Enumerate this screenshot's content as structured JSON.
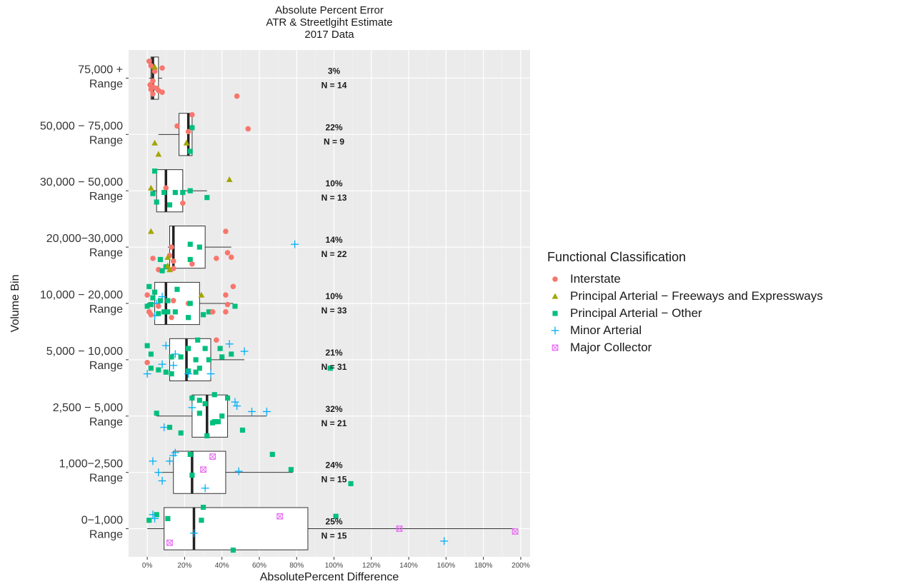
{
  "chart_data": {
    "type": "boxplot",
    "title": [
      "Absolute Percent Error",
      "ATR & Streetlgiht Estimate",
      "2017 Data"
    ],
    "xlabel": "AbsolutePercent Difference",
    "ylabel": "Volume Bin",
    "xlim": [
      -10,
      205
    ],
    "x_ticks": [
      0,
      20,
      40,
      60,
      80,
      100,
      120,
      140,
      160,
      180,
      200
    ],
    "x_tick_labels": [
      "0%",
      "20%",
      "40%",
      "60%",
      "80%",
      "100%",
      "120%",
      "140%",
      "160%",
      "180%",
      "200%"
    ],
    "grid": true,
    "legend_position": "right",
    "legend_title": "Functional Classification",
    "legend": [
      {
        "name": "Interstate",
        "shape": "circle",
        "color": "#F8766D"
      },
      {
        "name": "Principal Arterial − Freeways and Expressways",
        "shape": "triangle",
        "color": "#A3A500"
      },
      {
        "name": "Principal Arterial − Other",
        "shape": "square",
        "color": "#00BF7D"
      },
      {
        "name": "Minor Arterial",
        "shape": "plus",
        "color": "#00B0F6"
      },
      {
        "name": "Major Collector",
        "shape": "squarex",
        "color": "#E76BF3"
      }
    ],
    "categories": [
      {
        "label": [
          "75,000 +",
          "Range"
        ],
        "median_label": "3%",
        "n_label": "N = 14",
        "box": {
          "whisker_low": 1,
          "q1": 2,
          "median": 3,
          "q3": 6,
          "whisker_high": 8
        },
        "points": [
          {
            "x": 1,
            "dy": -0.3,
            "cls": 0
          },
          {
            "x": 2,
            "dy": -0.22,
            "cls": 0
          },
          {
            "x": 8,
            "dy": -0.18,
            "cls": 0
          },
          {
            "x": 4,
            "dy": -0.12,
            "cls": 0
          },
          {
            "x": 3,
            "dy": 0.05,
            "cls": 0
          },
          {
            "x": 1.5,
            "dy": 0.12,
            "cls": 0
          },
          {
            "x": 3,
            "dy": 0.15,
            "cls": 0
          },
          {
            "x": 5,
            "dy": 0.18,
            "cls": 0
          },
          {
            "x": 2,
            "dy": 0.2,
            "cls": 0
          },
          {
            "x": 6,
            "dy": 0.22,
            "cls": 0
          },
          {
            "x": 8,
            "dy": 0.25,
            "cls": 0
          },
          {
            "x": 3,
            "dy": 0.28,
            "cls": 0
          },
          {
            "x": 48,
            "dy": 0.32,
            "cls": 0
          },
          {
            "x": 4,
            "dy": -0.2,
            "cls": 1
          }
        ]
      },
      {
        "label": [
          "50,000 − 75,000",
          "Range"
        ],
        "median_label": "22%",
        "n_label": "N = 9",
        "box": {
          "whisker_low": 6,
          "q1": 17,
          "median": 22,
          "q3": 24,
          "whisker_high": 24
        },
        "points": [
          {
            "x": 24,
            "dy": -0.35,
            "cls": 0
          },
          {
            "x": 16,
            "dy": -0.15,
            "cls": 0
          },
          {
            "x": 54,
            "dy": -0.1,
            "cls": 0
          },
          {
            "x": 24,
            "dy": -0.12,
            "cls": 2
          },
          {
            "x": 23,
            "dy": 0.3,
            "cls": 2
          },
          {
            "x": 4,
            "dy": 0.15,
            "cls": 1
          },
          {
            "x": 21,
            "dy": 0.15,
            "cls": 1
          },
          {
            "x": 6,
            "dy": 0.35,
            "cls": 1
          },
          {
            "x": 22,
            "dy": -0.05,
            "cls": 0
          }
        ]
      },
      {
        "label": [
          "30,000 − 50,000",
          "Range"
        ],
        "median_label": "10%",
        "n_label": "N = 13",
        "box": {
          "whisker_low": 3,
          "q1": 5,
          "median": 10,
          "q3": 19,
          "whisker_high": 32
        },
        "points": [
          {
            "x": 4,
            "dy": -0.35,
            "cls": 2
          },
          {
            "x": 44,
            "dy": -0.2,
            "cls": 1
          },
          {
            "x": 2,
            "dy": -0.05,
            "cls": 1
          },
          {
            "x": 10,
            "dy": -0.05,
            "cls": 0
          },
          {
            "x": 3,
            "dy": 0.05,
            "cls": 2
          },
          {
            "x": 9,
            "dy": 0.03,
            "cls": 2
          },
          {
            "x": 15,
            "dy": 0.03,
            "cls": 2
          },
          {
            "x": 19,
            "dy": 0.03,
            "cls": 2
          },
          {
            "x": 23,
            "dy": 0.0,
            "cls": 2
          },
          {
            "x": 32,
            "dy": 0.12,
            "cls": 2
          },
          {
            "x": 5,
            "dy": 0.2,
            "cls": 2
          },
          {
            "x": 19,
            "dy": 0.22,
            "cls": 0
          },
          {
            "x": 12,
            "dy": 0.25,
            "cls": 2
          }
        ]
      },
      {
        "label": [
          "20,000−30,000",
          "Range"
        ],
        "median_label": "14%",
        "n_label": "N = 22",
        "box": {
          "whisker_low": 11,
          "q1": 12,
          "median": 14,
          "q3": 31,
          "whisker_high": 45
        },
        "points": [
          {
            "x": 2,
            "dy": -0.28,
            "cls": 1
          },
          {
            "x": 42,
            "dy": -0.28,
            "cls": 0
          },
          {
            "x": 79,
            "dy": -0.05,
            "cls": 3
          },
          {
            "x": 23,
            "dy": -0.05,
            "cls": 2
          },
          {
            "x": 28,
            "dy": 0.0,
            "cls": 2
          },
          {
            "x": 13,
            "dy": 0.0,
            "cls": 0
          },
          {
            "x": 43,
            "dy": 0.1,
            "cls": 0
          },
          {
            "x": 12,
            "dy": 0.15,
            "cls": 0
          },
          {
            "x": 37,
            "dy": 0.2,
            "cls": 0
          },
          {
            "x": 45,
            "dy": 0.18,
            "cls": 0
          },
          {
            "x": 3,
            "dy": 0.2,
            "cls": 0
          },
          {
            "x": 7,
            "dy": 0.22,
            "cls": 2
          },
          {
            "x": 14,
            "dy": 0.25,
            "cls": 0
          },
          {
            "x": 23,
            "dy": 0.22,
            "cls": 2
          },
          {
            "x": 11,
            "dy": 0.18,
            "cls": 1
          },
          {
            "x": 10,
            "dy": 0.35,
            "cls": 2
          },
          {
            "x": 11,
            "dy": 0.33,
            "cls": 1
          },
          {
            "x": 6,
            "dy": 0.4,
            "cls": 0
          },
          {
            "x": 12,
            "dy": 0.4,
            "cls": 1
          },
          {
            "x": 14,
            "dy": 0.38,
            "cls": 0
          },
          {
            "x": 8,
            "dy": 0.42,
            "cls": 2
          },
          {
            "x": 24,
            "dy": 0.3,
            "cls": 0
          }
        ]
      },
      {
        "label": [
          "10,000 − 20,000",
          "Range"
        ],
        "median_label": "10%",
        "n_label": "N = 33",
        "box": {
          "whisker_low": 0,
          "q1": 4,
          "median": 10,
          "q3": 28,
          "whisker_high": 46
        },
        "points": [
          {
            "x": 46,
            "dy": -0.3,
            "cls": 0
          },
          {
            "x": 1,
            "dy": -0.3,
            "cls": 2
          },
          {
            "x": 16,
            "dy": -0.25,
            "cls": 2
          },
          {
            "x": 4,
            "dy": -0.2,
            "cls": 2
          },
          {
            "x": 29,
            "dy": -0.15,
            "cls": 1
          },
          {
            "x": 42,
            "dy": -0.15,
            "cls": 0
          },
          {
            "x": 0,
            "dy": -0.15,
            "cls": 0
          },
          {
            "x": 8,
            "dy": -0.12,
            "cls": 3
          },
          {
            "x": 3,
            "dy": -0.1,
            "cls": 2
          },
          {
            "x": 7,
            "dy": -0.05,
            "cls": 2
          },
          {
            "x": 11,
            "dy": -0.05,
            "cls": 2
          },
          {
            "x": 22,
            "dy": 0.0,
            "cls": 0
          },
          {
            "x": 5,
            "dy": 0.0,
            "cls": 3
          },
          {
            "x": 2,
            "dy": 0.02,
            "cls": 2
          },
          {
            "x": 23,
            "dy": 0.0,
            "cls": 2
          },
          {
            "x": 43,
            "dy": 0.02,
            "cls": 0
          },
          {
            "x": 47,
            "dy": 0.05,
            "cls": 2
          },
          {
            "x": 6,
            "dy": 0.05,
            "cls": 0
          },
          {
            "x": 0,
            "dy": 0.05,
            "cls": 2
          },
          {
            "x": 1,
            "dy": 0.15,
            "cls": 0
          },
          {
            "x": 6,
            "dy": 0.18,
            "cls": 2
          },
          {
            "x": 9,
            "dy": 0.15,
            "cls": 2
          },
          {
            "x": 11,
            "dy": 0.15,
            "cls": 2
          },
          {
            "x": 15,
            "dy": 0.15,
            "cls": 2
          },
          {
            "x": 33,
            "dy": 0.15,
            "cls": 2
          },
          {
            "x": 35,
            "dy": 0.15,
            "cls": 0
          },
          {
            "x": 42,
            "dy": 0.15,
            "cls": 0
          },
          {
            "x": 4,
            "dy": 0.22,
            "cls": 3
          },
          {
            "x": 22,
            "dy": 0.25,
            "cls": 2
          },
          {
            "x": 13,
            "dy": 0.25,
            "cls": 0
          },
          {
            "x": 2,
            "dy": 0.2,
            "cls": 0
          },
          {
            "x": 30,
            "dy": 0.2,
            "cls": 2
          },
          {
            "x": 14,
            "dy": -0.05,
            "cls": 0
          }
        ]
      },
      {
        "label": [
          "5,000 − 10,000",
          "Range"
        ],
        "median_label": "21%",
        "n_label": "N = 31",
        "box": {
          "whisker_low": 12,
          "q1": 12,
          "median": 21,
          "q3": 34,
          "whisker_high": 52
        },
        "points": [
          {
            "x": 27,
            "dy": -0.35,
            "cls": 2
          },
          {
            "x": 37,
            "dy": -0.35,
            "cls": 0
          },
          {
            "x": 44,
            "dy": -0.28,
            "cls": 3
          },
          {
            "x": 0,
            "dy": -0.25,
            "cls": 2
          },
          {
            "x": 10,
            "dy": -0.25,
            "cls": 3
          },
          {
            "x": 22,
            "dy": -0.2,
            "cls": 2
          },
          {
            "x": 31,
            "dy": -0.2,
            "cls": 2
          },
          {
            "x": 39,
            "dy": -0.2,
            "cls": 2
          },
          {
            "x": 52,
            "dy": -0.15,
            "cls": 3
          },
          {
            "x": 45,
            "dy": -0.1,
            "cls": 2
          },
          {
            "x": 2,
            "dy": -0.1,
            "cls": 2
          },
          {
            "x": 15,
            "dy": -0.1,
            "cls": 3
          },
          {
            "x": 13,
            "dy": -0.05,
            "cls": 2
          },
          {
            "x": 18,
            "dy": -0.05,
            "cls": 2
          },
          {
            "x": 40,
            "dy": -0.05,
            "cls": 2
          },
          {
            "x": 26,
            "dy": 0.0,
            "cls": 2
          },
          {
            "x": 33,
            "dy": 0.0,
            "cls": 2
          },
          {
            "x": 0,
            "dy": 0.05,
            "cls": 0
          },
          {
            "x": 14,
            "dy": 0.1,
            "cls": 3
          },
          {
            "x": 2,
            "dy": 0.15,
            "cls": 2
          },
          {
            "x": 6,
            "dy": 0.18,
            "cls": 2
          },
          {
            "x": 10,
            "dy": 0.22,
            "cls": 2
          },
          {
            "x": 13,
            "dy": 0.25,
            "cls": 2
          },
          {
            "x": 22,
            "dy": 0.2,
            "cls": 2
          },
          {
            "x": 26,
            "dy": 0.22,
            "cls": 2
          },
          {
            "x": 28,
            "dy": 0.15,
            "cls": 2
          },
          {
            "x": 34,
            "dy": 0.25,
            "cls": 3
          },
          {
            "x": 98,
            "dy": 0.15,
            "cls": 2
          },
          {
            "x": 0,
            "dy": 0.25,
            "cls": 3
          },
          {
            "x": 22,
            "dy": 0.25,
            "cls": 3
          },
          {
            "x": 8,
            "dy": 0.08,
            "cls": 3
          }
        ]
      },
      {
        "label": [
          "2,500 − 5,000",
          "Range"
        ],
        "median_label": "32%",
        "n_label": "N = 21",
        "box": {
          "whisker_low": 5,
          "q1": 24,
          "median": 32,
          "q3": 43,
          "whisker_high": 64
        },
        "points": [
          {
            "x": 36,
            "dy": -0.38,
            "cls": 2
          },
          {
            "x": 24,
            "dy": -0.32,
            "cls": 2
          },
          {
            "x": 43,
            "dy": -0.32,
            "cls": 2
          },
          {
            "x": 28,
            "dy": -0.28,
            "cls": 2
          },
          {
            "x": 47,
            "dy": -0.25,
            "cls": 3
          },
          {
            "x": 31,
            "dy": -0.22,
            "cls": 2
          },
          {
            "x": 48,
            "dy": -0.18,
            "cls": 3
          },
          {
            "x": 24,
            "dy": -0.15,
            "cls": 3
          },
          {
            "x": 56,
            "dy": -0.08,
            "cls": 3
          },
          {
            "x": 64,
            "dy": -0.08,
            "cls": 3
          },
          {
            "x": 5,
            "dy": -0.05,
            "cls": 2
          },
          {
            "x": 36,
            "dy": 0.1,
            "cls": 2
          },
          {
            "x": 38,
            "dy": 0.1,
            "cls": 2
          },
          {
            "x": 35,
            "dy": 0.12,
            "cls": 2
          },
          {
            "x": 12,
            "dy": 0.2,
            "cls": 2
          },
          {
            "x": 9,
            "dy": 0.2,
            "cls": 3
          },
          {
            "x": 51,
            "dy": 0.25,
            "cls": 2
          },
          {
            "x": 18,
            "dy": 0.3,
            "cls": 2
          },
          {
            "x": 32,
            "dy": 0.35,
            "cls": 2
          },
          {
            "x": 28,
            "dy": -0.05,
            "cls": 2
          },
          {
            "x": 40,
            "dy": 0.0,
            "cls": 2
          }
        ]
      },
      {
        "label": [
          "1,000−2,500",
          "Range"
        ],
        "median_label": "24%",
        "n_label": "N = 15",
        "box": {
          "whisker_low": 8,
          "q1": 14,
          "median": 24,
          "q3": 42,
          "whisker_high": 78
        },
        "points": [
          {
            "x": 67,
            "dy": -0.32,
            "cls": 2
          },
          {
            "x": 15,
            "dy": -0.35,
            "cls": 3
          },
          {
            "x": 23,
            "dy": -0.32,
            "cls": 2
          },
          {
            "x": 35,
            "dy": -0.28,
            "cls": 4
          },
          {
            "x": 3,
            "dy": -0.2,
            "cls": 3
          },
          {
            "x": 12,
            "dy": -0.2,
            "cls": 3
          },
          {
            "x": 30,
            "dy": -0.05,
            "cls": 4
          },
          {
            "x": 77,
            "dy": -0.05,
            "cls": 2
          },
          {
            "x": 49,
            "dy": -0.02,
            "cls": 3
          },
          {
            "x": 6,
            "dy": 0.0,
            "cls": 3
          },
          {
            "x": 8,
            "dy": 0.15,
            "cls": 3
          },
          {
            "x": 109,
            "dy": 0.2,
            "cls": 2
          },
          {
            "x": 31,
            "dy": 0.28,
            "cls": 3
          },
          {
            "x": 14,
            "dy": -0.3,
            "cls": 3
          },
          {
            "x": 24,
            "dy": 0.05,
            "cls": 2
          }
        ]
      },
      {
        "label": [
          "0−1,000",
          "Range"
        ],
        "median_label": "25%",
        "n_label": "N = 15",
        "box": {
          "whisker_low": 0,
          "q1": 9,
          "median": 25,
          "q3": 86,
          "whisker_high": 197
        },
        "points": [
          {
            "x": 30,
            "dy": -0.38,
            "cls": 2
          },
          {
            "x": 71,
            "dy": -0.22,
            "cls": 4
          },
          {
            "x": 101,
            "dy": -0.22,
            "cls": 2
          },
          {
            "x": 3,
            "dy": -0.25,
            "cls": 3
          },
          {
            "x": 5,
            "dy": -0.25,
            "cls": 2
          },
          {
            "x": 4,
            "dy": -0.18,
            "cls": 3
          },
          {
            "x": 11,
            "dy": -0.18,
            "cls": 2
          },
          {
            "x": 1,
            "dy": -0.15,
            "cls": 2
          },
          {
            "x": 29,
            "dy": -0.15,
            "cls": 2
          },
          {
            "x": 135,
            "dy": 0.0,
            "cls": 4
          },
          {
            "x": 197,
            "dy": 0.05,
            "cls": 4
          },
          {
            "x": 25,
            "dy": 0.08,
            "cls": 3
          },
          {
            "x": 159,
            "dy": 0.22,
            "cls": 3
          },
          {
            "x": 12,
            "dy": 0.25,
            "cls": 4
          },
          {
            "x": 46,
            "dy": 0.38,
            "cls": 2
          }
        ]
      }
    ]
  }
}
